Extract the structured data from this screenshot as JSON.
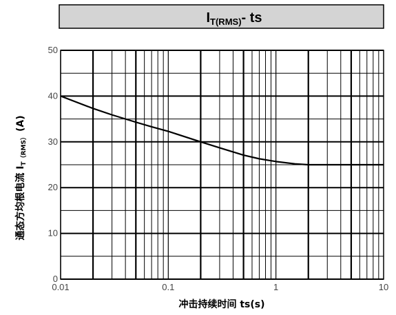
{
  "chart_data": {
    "type": "line",
    "title": {
      "main": "I",
      "sub": "T(RMS)",
      "suffix": "- ts"
    },
    "xlabel": "冲击持续时间 ts(s)",
    "ylabel": {
      "main": "通态方均根电流 I",
      "sub": "T（RMS）",
      "suffix": "(A)"
    },
    "x_scale": "log",
    "xlim": [
      0.01,
      10
    ],
    "ylim": [
      0,
      50
    ],
    "x_ticks": [
      {
        "value": 0.01,
        "label": "0.01"
      },
      {
        "value": 0.1,
        "label": "0.1"
      },
      {
        "value": 1,
        "label": "1"
      },
      {
        "value": 10,
        "label": "10"
      }
    ],
    "y_ticks": [
      {
        "value": 0,
        "label": "0"
      },
      {
        "value": 10,
        "label": "10"
      },
      {
        "value": 20,
        "label": "20"
      },
      {
        "value": 30,
        "label": "30"
      },
      {
        "value": 40,
        "label": "40"
      },
      {
        "value": 50,
        "label": "50"
      }
    ],
    "grid": true,
    "series": [
      {
        "color": "#000000",
        "x": [
          0.01,
          0.02,
          0.03,
          0.05,
          0.07,
          0.1,
          0.2,
          0.3,
          0.5,
          0.7,
          1,
          1.5,
          2,
          3,
          5,
          10
        ],
        "y": [
          40,
          37.3,
          35.9,
          34.3,
          33.3,
          32.3,
          30,
          28.7,
          27.1,
          26.3,
          25.7,
          25.2,
          25,
          25,
          25,
          25
        ]
      }
    ]
  }
}
